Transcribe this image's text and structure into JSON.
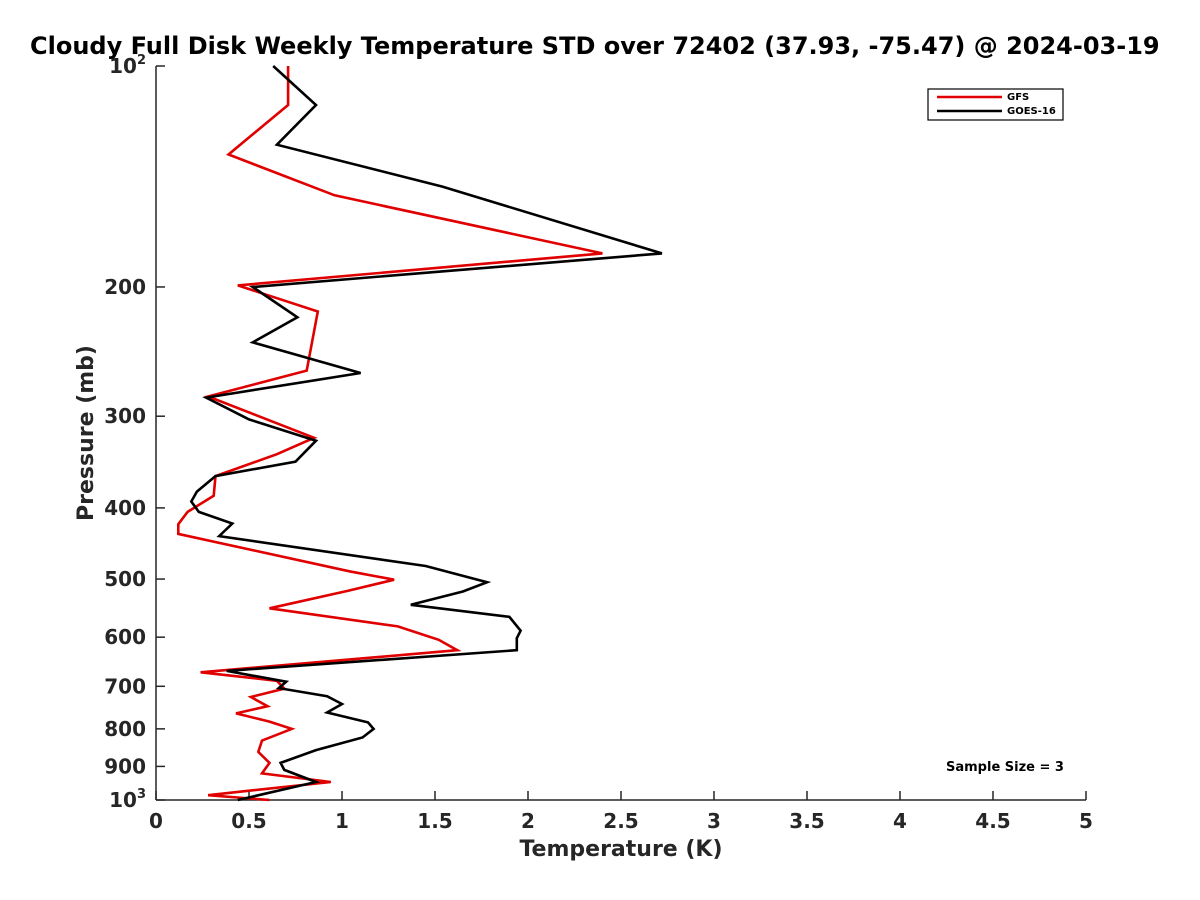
{
  "chart_data": {
    "type": "line",
    "title": "Cloudy Full Disk Weekly Temperature STD over 72402 (37.93, -75.47) @ 2024-03-19",
    "xlabel": "Temperature (K)",
    "ylabel": "Pressure (mb)",
    "xlim": [
      0,
      5
    ],
    "ylim": [
      100,
      1000
    ],
    "y_scale": "log",
    "y_reversed": true,
    "grid": false,
    "legend_position": "top-right",
    "x_ticks": [
      {
        "value": 0,
        "label": "0"
      },
      {
        "value": 0.5,
        "label": "0.5"
      },
      {
        "value": 1,
        "label": "1"
      },
      {
        "value": 1.5,
        "label": "1.5"
      },
      {
        "value": 2,
        "label": "2"
      },
      {
        "value": 2.5,
        "label": "2.5"
      },
      {
        "value": 3,
        "label": "3"
      },
      {
        "value": 3.5,
        "label": "3.5"
      },
      {
        "value": 4,
        "label": "4"
      },
      {
        "value": 4.5,
        "label": "4.5"
      },
      {
        "value": 5,
        "label": "5"
      }
    ],
    "y_ticks": [
      {
        "value": 100,
        "base": "10",
        "exp": "2"
      },
      {
        "value": 200,
        "label": "200"
      },
      {
        "value": 300,
        "label": "300"
      },
      {
        "value": 400,
        "label": "400"
      },
      {
        "value": 500,
        "label": "500"
      },
      {
        "value": 600,
        "label": "600"
      },
      {
        "value": 700,
        "label": "700"
      },
      {
        "value": 800,
        "label": "800"
      },
      {
        "value": 900,
        "label": "900"
      },
      {
        "value": 1000,
        "base": "10",
        "exp": "3"
      }
    ],
    "series": [
      {
        "name": "GFS",
        "color": "#e00000",
        "points": [
          [
            0.71,
            100
          ],
          [
            0.71,
            113
          ],
          [
            0.39,
            132
          ],
          [
            0.96,
            150
          ],
          [
            2.4,
            180
          ],
          [
            0.44,
            199
          ],
          [
            0.87,
            216
          ],
          [
            0.81,
            260
          ],
          [
            0.28,
            282
          ],
          [
            0.85,
            321
          ],
          [
            0.65,
            338
          ],
          [
            0.32,
            362
          ],
          [
            0.31,
            385
          ],
          [
            0.17,
            405
          ],
          [
            0.12,
            421
          ],
          [
            0.12,
            434
          ],
          [
            1.04,
            488
          ],
          [
            1.28,
            501
          ],
          [
            1.03,
            519
          ],
          [
            0.61,
            548
          ],
          [
            1.3,
            580
          ],
          [
            1.52,
            605
          ],
          [
            1.62,
            625
          ],
          [
            0.24,
            670
          ],
          [
            0.65,
            688
          ],
          [
            0.69,
            705
          ],
          [
            0.51,
            724
          ],
          [
            0.6,
            745
          ],
          [
            0.43,
            762
          ],
          [
            0.61,
            782
          ],
          [
            0.73,
            800
          ],
          [
            0.57,
            830
          ],
          [
            0.55,
            860
          ],
          [
            0.61,
            890
          ],
          [
            0.57,
            920
          ],
          [
            0.94,
            945
          ],
          [
            0.52,
            970
          ],
          [
            0.28,
            985
          ],
          [
            0.61,
            1000
          ]
        ]
      },
      {
        "name": "GOES-16",
        "color": "#000000",
        "points": [
          [
            0.63,
            100
          ],
          [
            0.86,
            113
          ],
          [
            0.65,
            128
          ],
          [
            1.54,
            146
          ],
          [
            2.72,
            180
          ],
          [
            0.52,
            200
          ],
          [
            0.76,
            220
          ],
          [
            0.52,
            238
          ],
          [
            1.1,
            262
          ],
          [
            0.27,
            283
          ],
          [
            0.5,
            303
          ],
          [
            0.86,
            324
          ],
          [
            0.75,
            346
          ],
          [
            0.32,
            362
          ],
          [
            0.22,
            380
          ],
          [
            0.19,
            392
          ],
          [
            0.23,
            405
          ],
          [
            0.41,
            420
          ],
          [
            0.34,
            437
          ],
          [
            1.45,
            480
          ],
          [
            1.78,
            505
          ],
          [
            1.65,
            520
          ],
          [
            1.37,
            542
          ],
          [
            1.9,
            563
          ],
          [
            1.96,
            588
          ],
          [
            1.94,
            602
          ],
          [
            1.94,
            625
          ],
          [
            0.38,
            667
          ],
          [
            0.7,
            690
          ],
          [
            0.66,
            704
          ],
          [
            0.92,
            722
          ],
          [
            1.0,
            740
          ],
          [
            0.92,
            760
          ],
          [
            1.14,
            784
          ],
          [
            1.17,
            800
          ],
          [
            1.11,
            822
          ],
          [
            0.86,
            855
          ],
          [
            0.67,
            890
          ],
          [
            0.69,
            910
          ],
          [
            0.86,
            945
          ],
          [
            0.44,
            1000
          ]
        ]
      }
    ],
    "annotations": [
      {
        "text": "Sample Size = 3",
        "position": "bottom-right"
      }
    ]
  }
}
